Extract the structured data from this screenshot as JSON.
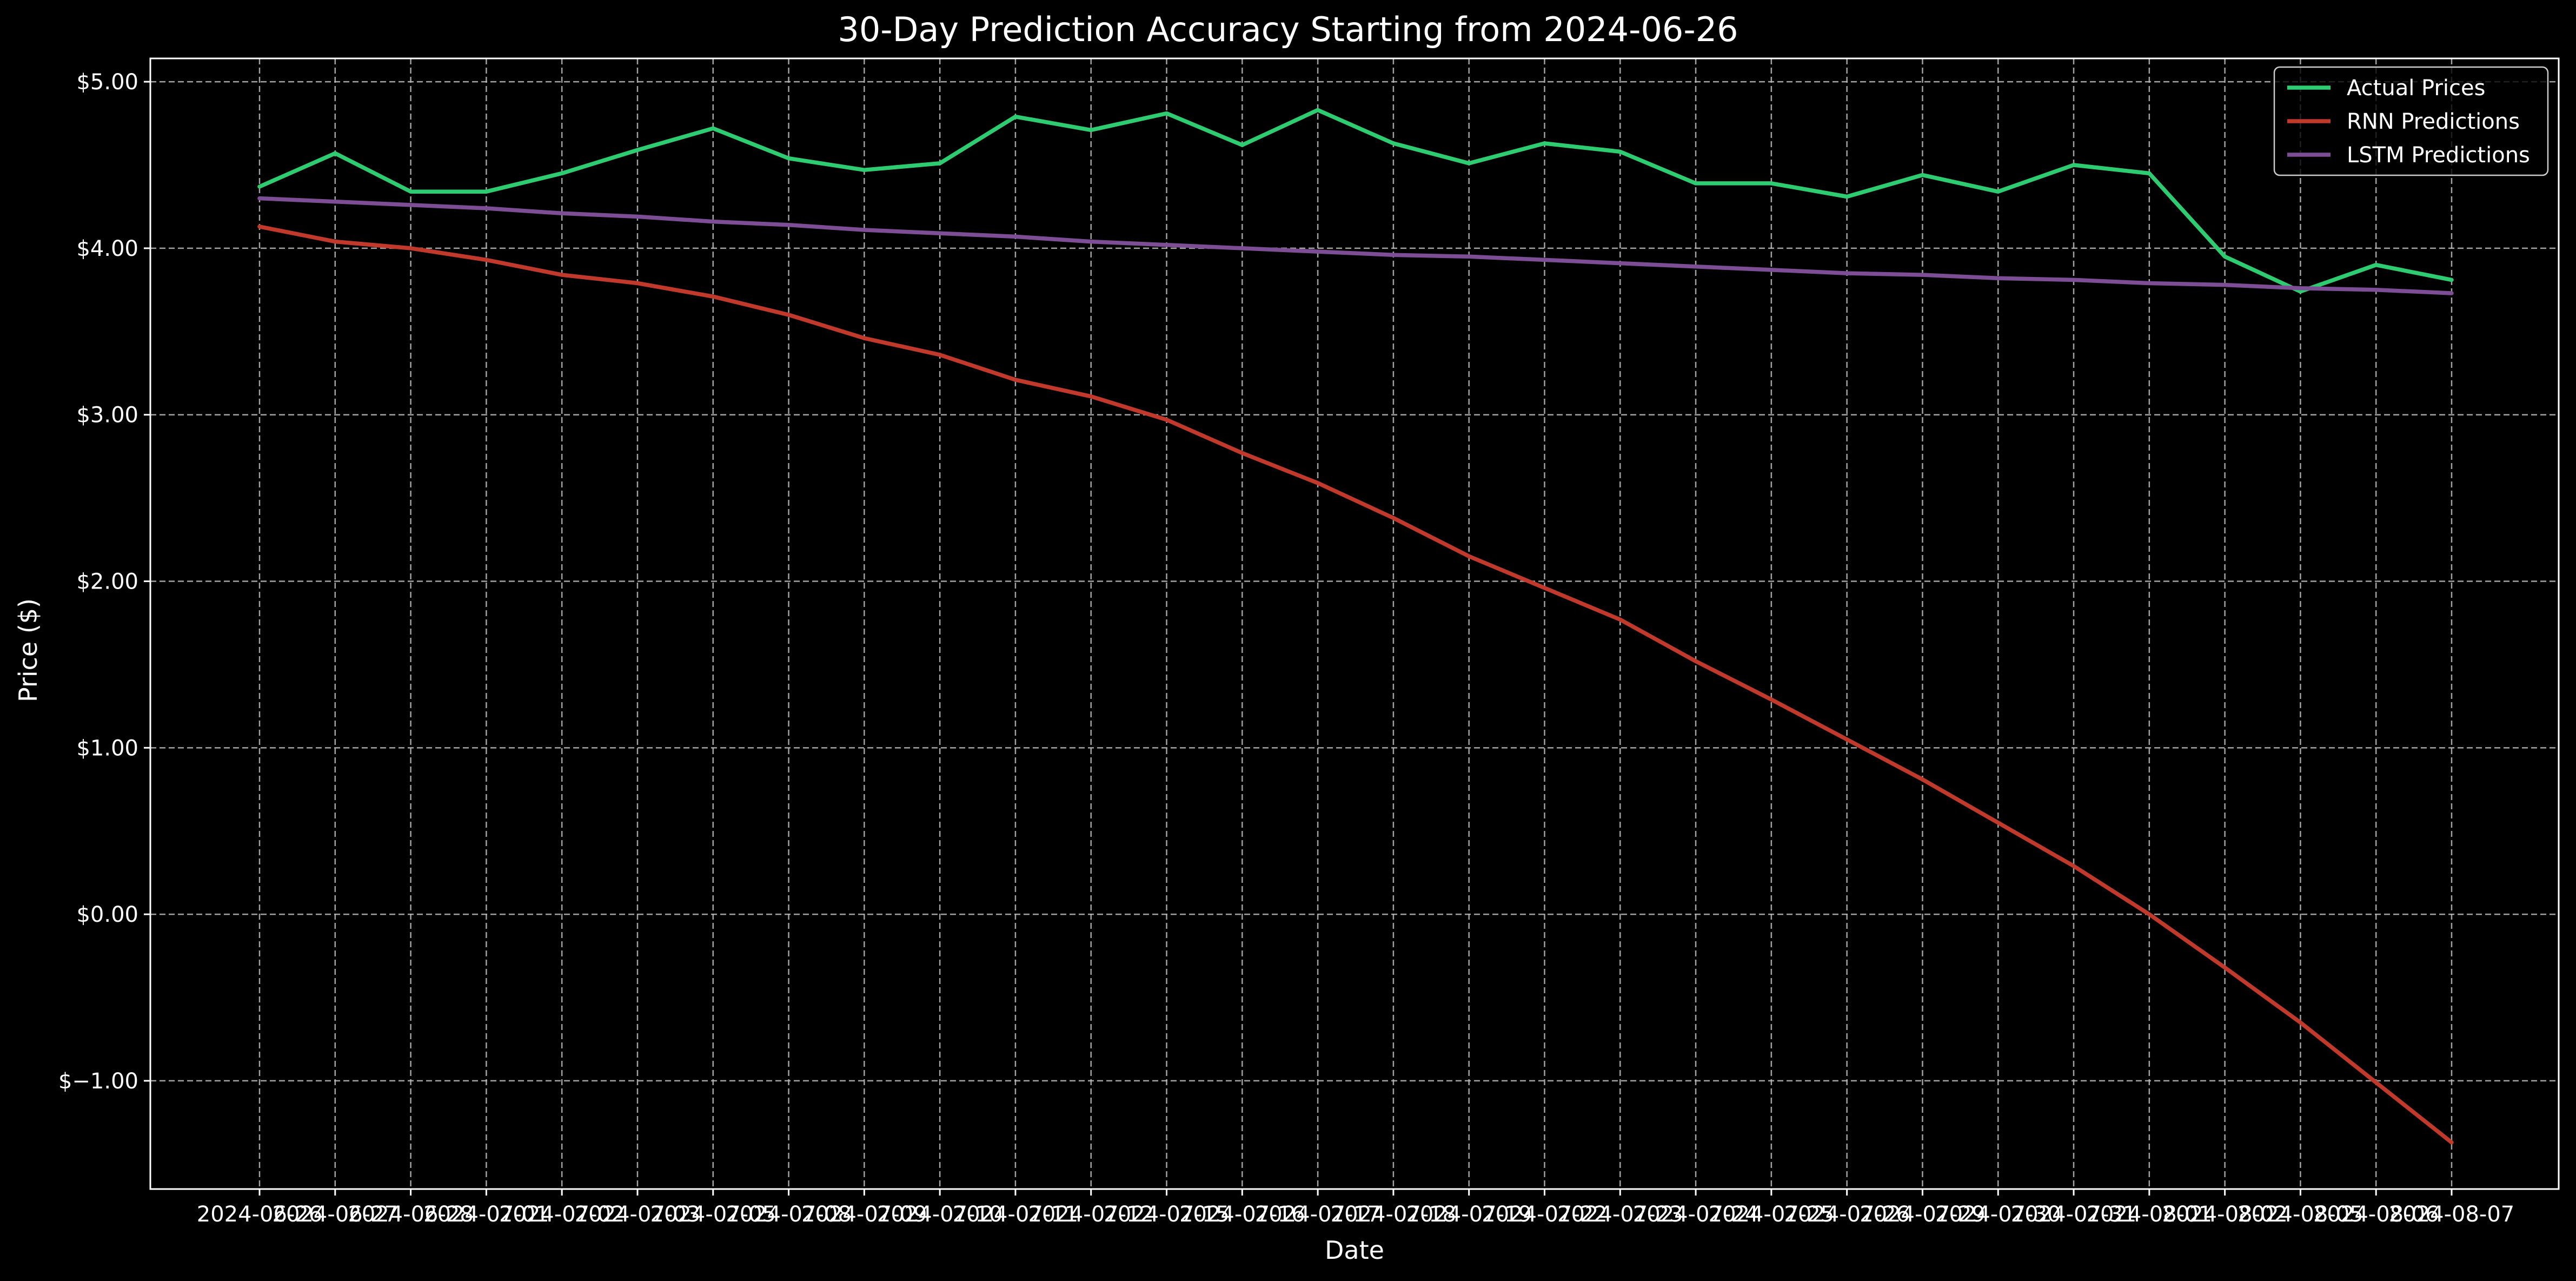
{
  "chart_data": {
    "type": "line",
    "title": "30-Day Prediction Accuracy Starting from 2024-06-26",
    "xlabel": "Date",
    "ylabel": "Price ($)",
    "ylim": [
      -1.65,
      5.14
    ],
    "y_ticks": [
      -1.0,
      0.0,
      1.0,
      2.0,
      3.0,
      4.0,
      5.0
    ],
    "y_tick_labels": [
      "$−1.00",
      "$0.00",
      "$1.00",
      "$2.00",
      "$3.00",
      "$4.00",
      "$5.00"
    ],
    "grid": true,
    "legend_position": "top-right",
    "x": [
      "2024-06-26",
      "2024-06-27",
      "2024-06-28",
      "2024-07-01",
      "2024-07-02",
      "2024-07-03",
      "2024-07-05",
      "2024-07-08",
      "2024-07-09",
      "2024-07-10",
      "2024-07-11",
      "2024-07-12",
      "2024-07-15",
      "2024-07-16",
      "2024-07-17",
      "2024-07-18",
      "2024-07-19",
      "2024-07-22",
      "2024-07-23",
      "2024-07-24",
      "2024-07-25",
      "2024-07-26",
      "2024-07-29",
      "2024-07-30",
      "2024-07-31",
      "2024-08-01",
      "2024-08-02",
      "2024-08-05",
      "2024-08-06",
      "2024-08-07"
    ],
    "series": [
      {
        "name": "Actual Prices",
        "color": "#2ecc71",
        "values": [
          4.37,
          4.57,
          4.34,
          4.34,
          4.45,
          4.59,
          4.72,
          4.54,
          4.47,
          4.51,
          4.79,
          4.71,
          4.81,
          4.62,
          4.83,
          4.63,
          4.51,
          4.63,
          4.58,
          4.39,
          4.39,
          4.31,
          4.44,
          4.34,
          4.5,
          4.45,
          3.95,
          3.74,
          3.9,
          3.81
        ]
      },
      {
        "name": "RNN Predictions",
        "color": "#c0392b",
        "values": [
          4.13,
          4.04,
          4.0,
          3.93,
          3.84,
          3.79,
          3.71,
          3.6,
          3.46,
          3.36,
          3.21,
          3.11,
          2.97,
          2.77,
          2.59,
          2.38,
          2.15,
          1.96,
          1.77,
          1.52,
          1.29,
          1.05,
          0.81,
          0.55,
          0.29,
          0.0,
          -0.32,
          -0.65,
          -1.01,
          -1.37
        ]
      },
      {
        "name": "LSTM Predictions",
        "color": "#7d4e96",
        "values": [
          4.3,
          4.28,
          4.26,
          4.24,
          4.21,
          4.19,
          4.16,
          4.14,
          4.11,
          4.09,
          4.07,
          4.04,
          4.02,
          4.0,
          3.98,
          3.96,
          3.95,
          3.93,
          3.91,
          3.89,
          3.87,
          3.85,
          3.84,
          3.82,
          3.81,
          3.79,
          3.78,
          3.76,
          3.75,
          3.73
        ]
      }
    ]
  }
}
